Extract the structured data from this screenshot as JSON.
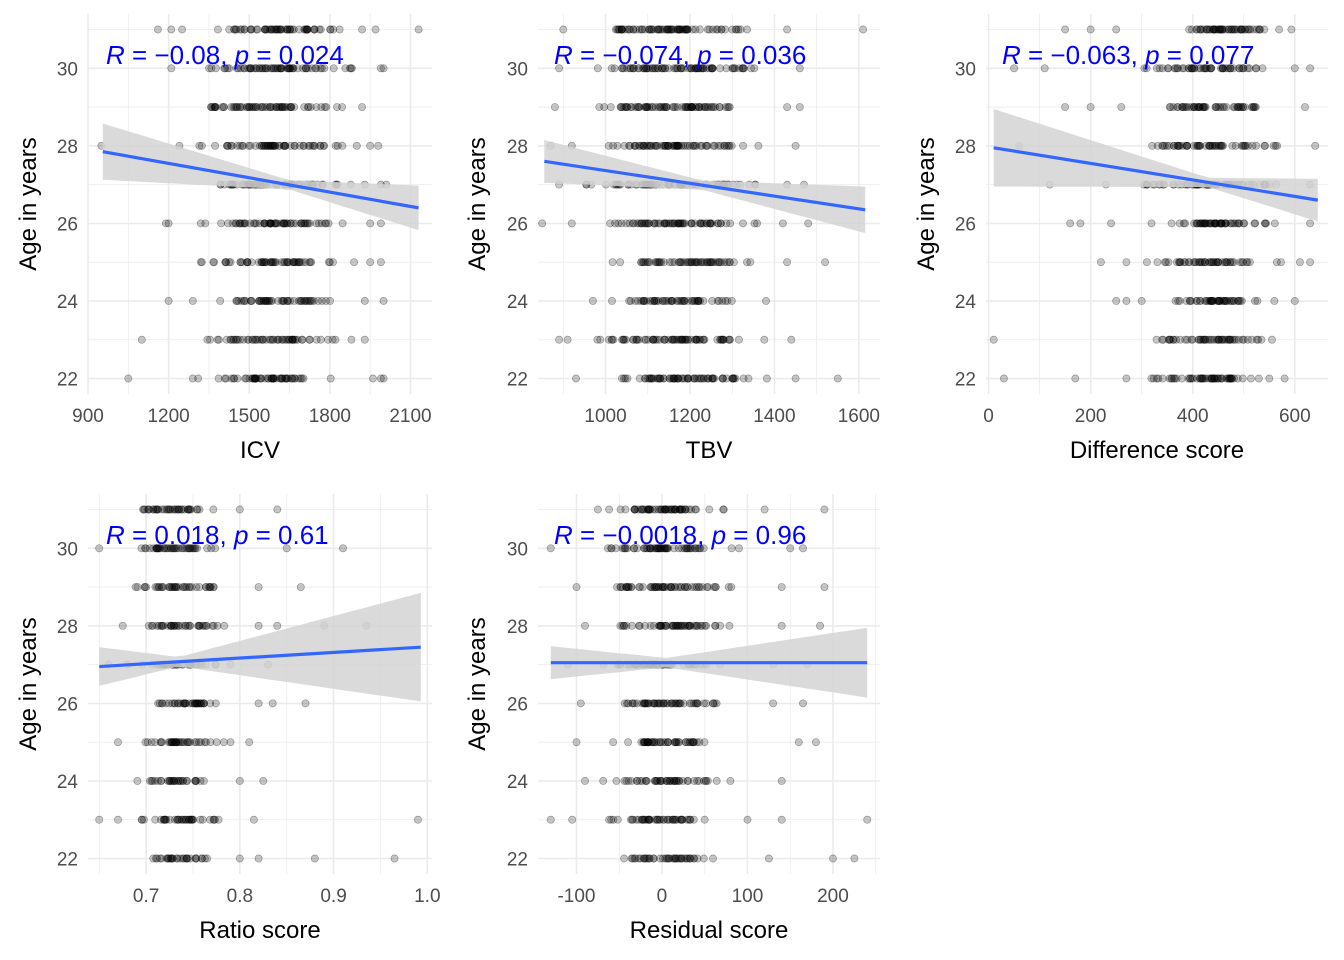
{
  "figure": {
    "background": "#ffffff",
    "grid_color": "#ebebeb",
    "point_color": "#000000",
    "point_opacity": 0.22,
    "line_color": "#3366ff",
    "ribbon_color": "#d3d3d3",
    "stat_color": "#0000ff"
  },
  "chart_data": [
    {
      "type": "scatter",
      "xlabel": "ICV",
      "ylabel": "Age in years",
      "xlim": [
        900,
        2180
      ],
      "ylim": [
        21.6,
        31.4
      ],
      "xticks": [
        900,
        1200,
        1500,
        1800,
        2100
      ],
      "yticks": [
        22,
        24,
        26,
        28,
        30
      ],
      "grid": true,
      "annotation": {
        "parts": [
          {
            "text": "R",
            "italic": true
          },
          {
            "text": " = −0.08, ",
            "italic": false
          },
          {
            "text": "p",
            "italic": true
          },
          {
            "text": " = 0.024",
            "italic": false
          }
        ]
      },
      "fit": {
        "x": [
          955,
          2130
        ],
        "y": [
          27.85,
          26.4
        ],
        "ci_low": [
          27.15,
          25.8
        ],
        "ci_mid": [
          1650,
          27.05
        ],
        "ci_high": [
          28.6,
          26.95
        ]
      },
      "rows": [
        {
          "age": 22,
          "x_min": 1290,
          "x_max": 1830,
          "sparse": [
            1050,
            1310,
            1960,
            1990,
            2000
          ]
        },
        {
          "age": 23,
          "x_min": 1300,
          "x_max": 1850,
          "sparse": [
            1100,
            1880,
            1930
          ]
        },
        {
          "age": 24,
          "x_min": 1330,
          "x_max": 1850,
          "sparse": [
            1200,
            1290,
            1930,
            2000
          ]
        },
        {
          "age": 25,
          "x_min": 1320,
          "x_max": 1900,
          "sparse": [
            1950,
            1990
          ]
        },
        {
          "age": 26,
          "x_min": 1290,
          "x_max": 1900,
          "sparse": [
            1190,
            1200,
            1950,
            1990
          ]
        },
        {
          "age": 27,
          "x_min": 1300,
          "x_max": 1890,
          "sparse": [
            1930,
            1990,
            2010
          ]
        },
        {
          "age": 28,
          "x_min": 1310,
          "x_max": 1900,
          "sparse": [
            950,
            1240,
            1950,
            1980
          ]
        },
        {
          "age": 29,
          "x_min": 1230,
          "x_max": 1880,
          "sparse": [
            1920
          ]
        },
        {
          "age": 30,
          "x_min": 1280,
          "x_max": 1930,
          "sparse": [
            1210,
            1990,
            2000
          ]
        },
        {
          "age": 31,
          "x_min": 1300,
          "x_max": 1890,
          "sparse": [
            1160,
            1210,
            1250,
            1920,
            1970,
            2130
          ]
        }
      ]
    },
    {
      "type": "scatter",
      "xlabel": "TBV",
      "ylabel": "Age in years",
      "xlim": [
        840,
        1650
      ],
      "ylim": [
        21.6,
        31.4
      ],
      "xticks": [
        1000,
        1200,
        1400,
        1600
      ],
      "yticks": [
        22,
        24,
        26,
        28,
        30
      ],
      "grid": true,
      "annotation": {
        "parts": [
          {
            "text": "R",
            "italic": true
          },
          {
            "text": " = −0.074, ",
            "italic": false
          },
          {
            "text": "p",
            "italic": true
          },
          {
            "text": " = 0.036",
            "italic": false
          }
        ]
      },
      "fit": {
        "x": [
          855,
          1615
        ],
        "y": [
          27.6,
          26.35
        ],
        "ci_low": [
          27.05,
          25.75
        ],
        "ci_mid": [
          1230,
          26.95
        ],
        "ci_high": [
          28.15,
          26.95
        ]
      },
      "rows": [
        {
          "age": 22,
          "x_min": 950,
          "x_max": 1390,
          "sparse": [
            930,
            1450,
            1550
          ]
        },
        {
          "age": 23,
          "x_min": 930,
          "x_max": 1380,
          "sparse": [
            890,
            910,
            1440
          ]
        },
        {
          "age": 24,
          "x_min": 1000,
          "x_max": 1340,
          "sparse": [
            970,
            1380
          ]
        },
        {
          "age": 25,
          "x_min": 1000,
          "x_max": 1380,
          "sparse": [
            1430,
            1520
          ]
        },
        {
          "age": 26,
          "x_min": 950,
          "x_max": 1380,
          "sparse": [
            850,
            920,
            1420,
            1480
          ]
        },
        {
          "age": 27,
          "x_min": 950,
          "x_max": 1390,
          "sparse": [
            890,
            1430,
            1470
          ]
        },
        {
          "age": 28,
          "x_min": 960,
          "x_max": 1390,
          "sparse": [
            870,
            920,
            1450
          ]
        },
        {
          "age": 29,
          "x_min": 920,
          "x_max": 1390,
          "sparse": [
            880,
            1430,
            1460
          ]
        },
        {
          "age": 30,
          "x_min": 930,
          "x_max": 1410,
          "sparse": [
            890,
            1460
          ]
        },
        {
          "age": 31,
          "x_min": 920,
          "x_max": 1400,
          "sparse": [
            900,
            1430,
            1610
          ]
        }
      ]
    },
    {
      "type": "scatter",
      "xlabel": "Difference score",
      "ylabel": "Age in years",
      "xlim": [
        -5,
        665
      ],
      "ylim": [
        21.6,
        31.4
      ],
      "xticks": [
        0,
        200,
        400,
        600
      ],
      "yticks": [
        22,
        24,
        26,
        28,
        30
      ],
      "grid": true,
      "annotation": {
        "parts": [
          {
            "text": "R",
            "italic": true
          },
          {
            "text": " = −0.063, ",
            "italic": false
          },
          {
            "text": "p",
            "italic": true
          },
          {
            "text": " = 0.077",
            "italic": false
          }
        ]
      },
      "fit": {
        "x": [
          10,
          645
        ],
        "y": [
          27.95,
          26.6
        ],
        "ci_low": [
          26.95,
          26.05
        ],
        "ci_mid": [
          430,
          27.05
        ],
        "ci_high": [
          28.95,
          27.15
        ]
      },
      "rows": [
        {
          "age": 22,
          "x_min": 280,
          "x_max": 580,
          "sparse": [
            30,
            170,
            270
          ]
        },
        {
          "age": 23,
          "x_min": 310,
          "x_max": 590,
          "sparse": [
            10
          ]
        },
        {
          "age": 24,
          "x_min": 300,
          "x_max": 560,
          "sparse": [
            250,
            270,
            600
          ]
        },
        {
          "age": 25,
          "x_min": 310,
          "x_max": 580,
          "sparse": [
            220,
            270,
            610,
            630
          ]
        },
        {
          "age": 26,
          "x_min": 300,
          "x_max": 590,
          "sparse": [
            160,
            180,
            240,
            630
          ]
        },
        {
          "age": 27,
          "x_min": 280,
          "x_max": 600,
          "sparse": [
            120,
            230,
            630
          ]
        },
        {
          "age": 28,
          "x_min": 300,
          "x_max": 590,
          "sparse": [
            60,
            640
          ]
        },
        {
          "age": 29,
          "x_min": 310,
          "x_max": 580,
          "sparse": [
            150,
            200,
            260,
            620
          ]
        },
        {
          "age": 30,
          "x_min": 300,
          "x_max": 570,
          "sparse": [
            50,
            110,
            600,
            630
          ]
        },
        {
          "age": 31,
          "x_min": 310,
          "x_max": 600,
          "sparse": [
            150,
            200,
            250
          ]
        }
      ]
    },
    {
      "type": "scatter",
      "xlabel": "Ratio score",
      "ylabel": "Age in years",
      "xlim": [
        0.638,
        1.005
      ],
      "ylim": [
        21.6,
        31.4
      ],
      "xticks": [
        0.7,
        0.8,
        0.9,
        1.0
      ],
      "xtick_labels": [
        "0.7",
        "0.8",
        "0.9",
        "1.0"
      ],
      "yticks": [
        22,
        24,
        26,
        28,
        30
      ],
      "grid": true,
      "annotation": {
        "parts": [
          {
            "text": "R",
            "italic": true
          },
          {
            "text": " = 0.018, ",
            "italic": false
          },
          {
            "text": "p",
            "italic": true
          },
          {
            "text": " = 0.61",
            "italic": false
          }
        ]
      },
      "fit": {
        "x": [
          0.65,
          0.993
        ],
        "y": [
          26.95,
          27.45
        ],
        "ci_low": [
          26.45,
          26.0
        ],
        "ci_mid": [
          0.735,
          27.05
        ],
        "ci_high": [
          27.45,
          28.8
        ]
      },
      "rows": [
        {
          "age": 22,
          "x_min": 0.69,
          "x_max": 0.775,
          "sparse": [
            0.8,
            0.82,
            0.88,
            0.965
          ]
        },
        {
          "age": 23,
          "x_min": 0.68,
          "x_max": 0.785,
          "sparse": [
            0.65,
            0.67,
            0.815,
            0.99
          ]
        },
        {
          "age": 24,
          "x_min": 0.69,
          "x_max": 0.78,
          "sparse": [
            0.8,
            0.825
          ]
        },
        {
          "age": 25,
          "x_min": 0.68,
          "x_max": 0.79,
          "sparse": [
            0.67,
            0.81
          ]
        },
        {
          "age": 26,
          "x_min": 0.69,
          "x_max": 0.795,
          "sparse": [
            0.82,
            0.835,
            0.87
          ]
        },
        {
          "age": 27,
          "x_min": 0.68,
          "x_max": 0.79,
          "sparse": [
            0.66,
            0.83
          ]
        },
        {
          "age": 28,
          "x_min": 0.69,
          "x_max": 0.795,
          "sparse": [
            0.675,
            0.82,
            0.84,
            0.89,
            0.935
          ]
        },
        {
          "age": 29,
          "x_min": 0.68,
          "x_max": 0.79,
          "sparse": [
            0.82,
            0.865
          ]
        },
        {
          "age": 30,
          "x_min": 0.67,
          "x_max": 0.79,
          "sparse": [
            0.65,
            0.85,
            0.91
          ]
        },
        {
          "age": 31,
          "x_min": 0.67,
          "x_max": 0.78,
          "sparse": [
            0.8,
            0.84
          ]
        }
      ]
    },
    {
      "type": "scatter",
      "xlabel": "Residual score",
      "ylabel": "Age in years",
      "xlim": [
        -145,
        255
      ],
      "ylim": [
        21.6,
        31.4
      ],
      "xticks": [
        -100,
        0,
        100,
        200
      ],
      "yticks": [
        22,
        24,
        26,
        28,
        30
      ],
      "grid": true,
      "annotation": {
        "parts": [
          {
            "text": "R",
            "italic": true
          },
          {
            "text": " = −0.0018, ",
            "italic": false
          },
          {
            "text": "p",
            "italic": true
          },
          {
            "text": " = 0.96",
            "italic": false
          }
        ]
      },
      "fit": {
        "x": [
          -130,
          240
        ],
        "y": [
          27.05,
          27.05
        ],
        "ci_low": [
          26.6,
          26.15
        ],
        "ci_mid": [
          5,
          27.05
        ],
        "ci_high": [
          27.45,
          27.95
        ]
      },
      "rows": [
        {
          "age": 22,
          "x_min": -60,
          "x_max": 75,
          "sparse": [
            125,
            200,
            225
          ]
        },
        {
          "age": 23,
          "x_min": -80,
          "x_max": 70,
          "sparse": [
            -130,
            -105,
            100,
            140,
            240
          ]
        },
        {
          "age": 24,
          "x_min": -70,
          "x_max": 80,
          "sparse": [
            -90,
            140
          ]
        },
        {
          "age": 25,
          "x_min": -70,
          "x_max": 80,
          "sparse": [
            -100,
            160,
            180
          ]
        },
        {
          "age": 26,
          "x_min": -75,
          "x_max": 90,
          "sparse": [
            -95,
            130,
            165
          ]
        },
        {
          "age": 27,
          "x_min": -80,
          "x_max": 85,
          "sparse": [
            -110,
            130,
            170
          ]
        },
        {
          "age": 28,
          "x_min": -70,
          "x_max": 90,
          "sparse": [
            -90,
            140,
            185
          ]
        },
        {
          "age": 29,
          "x_min": -80,
          "x_max": 95,
          "sparse": [
            -100,
            140,
            190
          ]
        },
        {
          "age": 30,
          "x_min": -85,
          "x_max": 90,
          "sparse": [
            -130,
            150,
            165
          ]
        },
        {
          "age": 31,
          "x_min": -90,
          "x_max": 90,
          "sparse": [
            -75,
            120,
            190
          ]
        }
      ]
    }
  ]
}
